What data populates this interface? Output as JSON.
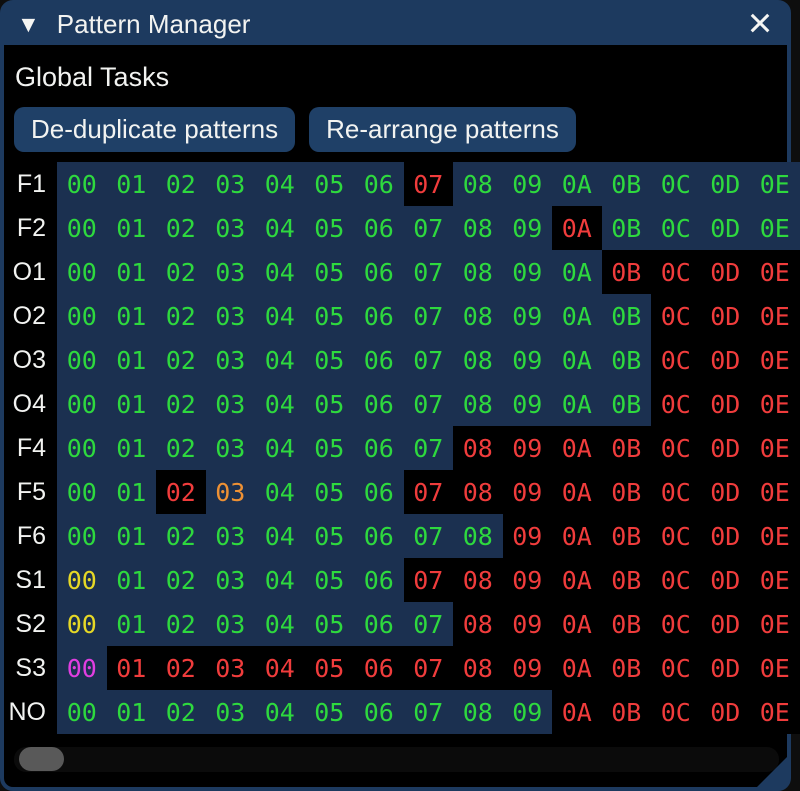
{
  "window": {
    "title": "Pattern Manager"
  },
  "icons": {
    "collapse_icon": "▼",
    "close_icon": "×"
  },
  "global_tasks": {
    "heading": "Global Tasks",
    "dedupe_button": "De-duplicate patterns",
    "rearrange_button": "Re-arrange patterns"
  },
  "colors": {
    "navy": "#1d3a5f",
    "button": "#1f4067",
    "cell_bg": "#1b3050",
    "green": "#2ed93e",
    "red": "#f03c3c",
    "orange": "#ee9134",
    "yellow": "#e6d826",
    "magenta": "#e03ee0",
    "thumb": "#595959"
  },
  "grid": {
    "rows": [
      {
        "label": "F1",
        "cells": [
          {
            "v": "00",
            "c": "g",
            "b": "u"
          },
          {
            "v": "01",
            "c": "g",
            "b": "u"
          },
          {
            "v": "02",
            "c": "g",
            "b": "u"
          },
          {
            "v": "03",
            "c": "g",
            "b": "u"
          },
          {
            "v": "04",
            "c": "g",
            "b": "u"
          },
          {
            "v": "05",
            "c": "g",
            "b": "u"
          },
          {
            "v": "06",
            "c": "g",
            "b": "u"
          },
          {
            "v": "07",
            "c": "r",
            "b": "k"
          },
          {
            "v": "08",
            "c": "g",
            "b": "u"
          },
          {
            "v": "09",
            "c": "g",
            "b": "u"
          },
          {
            "v": "0A",
            "c": "g",
            "b": "u"
          },
          {
            "v": "0B",
            "c": "g",
            "b": "u"
          },
          {
            "v": "0C",
            "c": "g",
            "b": "u"
          },
          {
            "v": "0D",
            "c": "g",
            "b": "u"
          },
          {
            "v": "0E",
            "c": "g",
            "b": "u"
          }
        ]
      },
      {
        "label": "F2",
        "cells": [
          {
            "v": "00",
            "c": "g",
            "b": "u"
          },
          {
            "v": "01",
            "c": "g",
            "b": "u"
          },
          {
            "v": "02",
            "c": "g",
            "b": "u"
          },
          {
            "v": "03",
            "c": "g",
            "b": "u"
          },
          {
            "v": "04",
            "c": "g",
            "b": "u"
          },
          {
            "v": "05",
            "c": "g",
            "b": "u"
          },
          {
            "v": "06",
            "c": "g",
            "b": "u"
          },
          {
            "v": "07",
            "c": "g",
            "b": "u"
          },
          {
            "v": "08",
            "c": "g",
            "b": "u"
          },
          {
            "v": "09",
            "c": "g",
            "b": "u"
          },
          {
            "v": "0A",
            "c": "r",
            "b": "k"
          },
          {
            "v": "0B",
            "c": "g",
            "b": "u"
          },
          {
            "v": "0C",
            "c": "g",
            "b": "u"
          },
          {
            "v": "0D",
            "c": "g",
            "b": "u"
          },
          {
            "v": "0E",
            "c": "g",
            "b": "u"
          }
        ]
      },
      {
        "label": "O1",
        "cells": [
          {
            "v": "00",
            "c": "g",
            "b": "u"
          },
          {
            "v": "01",
            "c": "g",
            "b": "u"
          },
          {
            "v": "02",
            "c": "g",
            "b": "u"
          },
          {
            "v": "03",
            "c": "g",
            "b": "u"
          },
          {
            "v": "04",
            "c": "g",
            "b": "u"
          },
          {
            "v": "05",
            "c": "g",
            "b": "u"
          },
          {
            "v": "06",
            "c": "g",
            "b": "u"
          },
          {
            "v": "07",
            "c": "g",
            "b": "u"
          },
          {
            "v": "08",
            "c": "g",
            "b": "u"
          },
          {
            "v": "09",
            "c": "g",
            "b": "u"
          },
          {
            "v": "0A",
            "c": "g",
            "b": "u"
          },
          {
            "v": "0B",
            "c": "r",
            "b": "k"
          },
          {
            "v": "0C",
            "c": "r",
            "b": "k"
          },
          {
            "v": "0D",
            "c": "r",
            "b": "k"
          },
          {
            "v": "0E",
            "c": "r",
            "b": "k"
          }
        ]
      },
      {
        "label": "O2",
        "cells": [
          {
            "v": "00",
            "c": "g",
            "b": "u"
          },
          {
            "v": "01",
            "c": "g",
            "b": "u"
          },
          {
            "v": "02",
            "c": "g",
            "b": "u"
          },
          {
            "v": "03",
            "c": "g",
            "b": "u"
          },
          {
            "v": "04",
            "c": "g",
            "b": "u"
          },
          {
            "v": "05",
            "c": "g",
            "b": "u"
          },
          {
            "v": "06",
            "c": "g",
            "b": "u"
          },
          {
            "v": "07",
            "c": "g",
            "b": "u"
          },
          {
            "v": "08",
            "c": "g",
            "b": "u"
          },
          {
            "v": "09",
            "c": "g",
            "b": "u"
          },
          {
            "v": "0A",
            "c": "g",
            "b": "u"
          },
          {
            "v": "0B",
            "c": "g",
            "b": "u"
          },
          {
            "v": "0C",
            "c": "r",
            "b": "k"
          },
          {
            "v": "0D",
            "c": "r",
            "b": "k"
          },
          {
            "v": "0E",
            "c": "r",
            "b": "k"
          }
        ]
      },
      {
        "label": "O3",
        "cells": [
          {
            "v": "00",
            "c": "g",
            "b": "u"
          },
          {
            "v": "01",
            "c": "g",
            "b": "u"
          },
          {
            "v": "02",
            "c": "g",
            "b": "u"
          },
          {
            "v": "03",
            "c": "g",
            "b": "u"
          },
          {
            "v": "04",
            "c": "g",
            "b": "u"
          },
          {
            "v": "05",
            "c": "g",
            "b": "u"
          },
          {
            "v": "06",
            "c": "g",
            "b": "u"
          },
          {
            "v": "07",
            "c": "g",
            "b": "u"
          },
          {
            "v": "08",
            "c": "g",
            "b": "u"
          },
          {
            "v": "09",
            "c": "g",
            "b": "u"
          },
          {
            "v": "0A",
            "c": "g",
            "b": "u"
          },
          {
            "v": "0B",
            "c": "g",
            "b": "u"
          },
          {
            "v": "0C",
            "c": "r",
            "b": "k"
          },
          {
            "v": "0D",
            "c": "r",
            "b": "k"
          },
          {
            "v": "0E",
            "c": "r",
            "b": "k"
          }
        ]
      },
      {
        "label": "O4",
        "cells": [
          {
            "v": "00",
            "c": "g",
            "b": "u"
          },
          {
            "v": "01",
            "c": "g",
            "b": "u"
          },
          {
            "v": "02",
            "c": "g",
            "b": "u"
          },
          {
            "v": "03",
            "c": "g",
            "b": "u"
          },
          {
            "v": "04",
            "c": "g",
            "b": "u"
          },
          {
            "v": "05",
            "c": "g",
            "b": "u"
          },
          {
            "v": "06",
            "c": "g",
            "b": "u"
          },
          {
            "v": "07",
            "c": "g",
            "b": "u"
          },
          {
            "v": "08",
            "c": "g",
            "b": "u"
          },
          {
            "v": "09",
            "c": "g",
            "b": "u"
          },
          {
            "v": "0A",
            "c": "g",
            "b": "u"
          },
          {
            "v": "0B",
            "c": "g",
            "b": "u"
          },
          {
            "v": "0C",
            "c": "r",
            "b": "k"
          },
          {
            "v": "0D",
            "c": "r",
            "b": "k"
          },
          {
            "v": "0E",
            "c": "r",
            "b": "k"
          }
        ]
      },
      {
        "label": "F4",
        "cells": [
          {
            "v": "00",
            "c": "g",
            "b": "u"
          },
          {
            "v": "01",
            "c": "g",
            "b": "u"
          },
          {
            "v": "02",
            "c": "g",
            "b": "u"
          },
          {
            "v": "03",
            "c": "g",
            "b": "u"
          },
          {
            "v": "04",
            "c": "g",
            "b": "u"
          },
          {
            "v": "05",
            "c": "g",
            "b": "u"
          },
          {
            "v": "06",
            "c": "g",
            "b": "u"
          },
          {
            "v": "07",
            "c": "g",
            "b": "u"
          },
          {
            "v": "08",
            "c": "r",
            "b": "k"
          },
          {
            "v": "09",
            "c": "r",
            "b": "k"
          },
          {
            "v": "0A",
            "c": "r",
            "b": "k"
          },
          {
            "v": "0B",
            "c": "r",
            "b": "k"
          },
          {
            "v": "0C",
            "c": "r",
            "b": "k"
          },
          {
            "v": "0D",
            "c": "r",
            "b": "k"
          },
          {
            "v": "0E",
            "c": "r",
            "b": "k"
          }
        ]
      },
      {
        "label": "F5",
        "cells": [
          {
            "v": "00",
            "c": "g",
            "b": "u"
          },
          {
            "v": "01",
            "c": "g",
            "b": "u"
          },
          {
            "v": "02",
            "c": "r",
            "b": "k"
          },
          {
            "v": "03",
            "c": "o",
            "b": "u"
          },
          {
            "v": "04",
            "c": "g",
            "b": "u"
          },
          {
            "v": "05",
            "c": "g",
            "b": "u"
          },
          {
            "v": "06",
            "c": "g",
            "b": "u"
          },
          {
            "v": "07",
            "c": "r",
            "b": "k"
          },
          {
            "v": "08",
            "c": "r",
            "b": "k"
          },
          {
            "v": "09",
            "c": "r",
            "b": "k"
          },
          {
            "v": "0A",
            "c": "r",
            "b": "k"
          },
          {
            "v": "0B",
            "c": "r",
            "b": "k"
          },
          {
            "v": "0C",
            "c": "r",
            "b": "k"
          },
          {
            "v": "0D",
            "c": "r",
            "b": "k"
          },
          {
            "v": "0E",
            "c": "r",
            "b": "k"
          }
        ]
      },
      {
        "label": "F6",
        "cells": [
          {
            "v": "00",
            "c": "g",
            "b": "u"
          },
          {
            "v": "01",
            "c": "g",
            "b": "u"
          },
          {
            "v": "02",
            "c": "g",
            "b": "u"
          },
          {
            "v": "03",
            "c": "g",
            "b": "u"
          },
          {
            "v": "04",
            "c": "g",
            "b": "u"
          },
          {
            "v": "05",
            "c": "g",
            "b": "u"
          },
          {
            "v": "06",
            "c": "g",
            "b": "u"
          },
          {
            "v": "07",
            "c": "g",
            "b": "u"
          },
          {
            "v": "08",
            "c": "g",
            "b": "u"
          },
          {
            "v": "09",
            "c": "r",
            "b": "k"
          },
          {
            "v": "0A",
            "c": "r",
            "b": "k"
          },
          {
            "v": "0B",
            "c": "r",
            "b": "k"
          },
          {
            "v": "0C",
            "c": "r",
            "b": "k"
          },
          {
            "v": "0D",
            "c": "r",
            "b": "k"
          },
          {
            "v": "0E",
            "c": "r",
            "b": "k"
          }
        ]
      },
      {
        "label": "S1",
        "cells": [
          {
            "v": "00",
            "c": "y",
            "b": "u"
          },
          {
            "v": "01",
            "c": "g",
            "b": "u"
          },
          {
            "v": "02",
            "c": "g",
            "b": "u"
          },
          {
            "v": "03",
            "c": "g",
            "b": "u"
          },
          {
            "v": "04",
            "c": "g",
            "b": "u"
          },
          {
            "v": "05",
            "c": "g",
            "b": "u"
          },
          {
            "v": "06",
            "c": "g",
            "b": "u"
          },
          {
            "v": "07",
            "c": "r",
            "b": "k"
          },
          {
            "v": "08",
            "c": "r",
            "b": "k"
          },
          {
            "v": "09",
            "c": "r",
            "b": "k"
          },
          {
            "v": "0A",
            "c": "r",
            "b": "k"
          },
          {
            "v": "0B",
            "c": "r",
            "b": "k"
          },
          {
            "v": "0C",
            "c": "r",
            "b": "k"
          },
          {
            "v": "0D",
            "c": "r",
            "b": "k"
          },
          {
            "v": "0E",
            "c": "r",
            "b": "k"
          }
        ]
      },
      {
        "label": "S2",
        "cells": [
          {
            "v": "00",
            "c": "y",
            "b": "u"
          },
          {
            "v": "01",
            "c": "g",
            "b": "u"
          },
          {
            "v": "02",
            "c": "g",
            "b": "u"
          },
          {
            "v": "03",
            "c": "g",
            "b": "u"
          },
          {
            "v": "04",
            "c": "g",
            "b": "u"
          },
          {
            "v": "05",
            "c": "g",
            "b": "u"
          },
          {
            "v": "06",
            "c": "g",
            "b": "u"
          },
          {
            "v": "07",
            "c": "g",
            "b": "u"
          },
          {
            "v": "08",
            "c": "r",
            "b": "k"
          },
          {
            "v": "09",
            "c": "r",
            "b": "k"
          },
          {
            "v": "0A",
            "c": "r",
            "b": "k"
          },
          {
            "v": "0B",
            "c": "r",
            "b": "k"
          },
          {
            "v": "0C",
            "c": "r",
            "b": "k"
          },
          {
            "v": "0D",
            "c": "r",
            "b": "k"
          },
          {
            "v": "0E",
            "c": "r",
            "b": "k"
          }
        ]
      },
      {
        "label": "S3",
        "cells": [
          {
            "v": "00",
            "c": "m",
            "b": "u"
          },
          {
            "v": "01",
            "c": "r",
            "b": "k"
          },
          {
            "v": "02",
            "c": "r",
            "b": "k"
          },
          {
            "v": "03",
            "c": "r",
            "b": "k"
          },
          {
            "v": "04",
            "c": "r",
            "b": "k"
          },
          {
            "v": "05",
            "c": "r",
            "b": "k"
          },
          {
            "v": "06",
            "c": "r",
            "b": "k"
          },
          {
            "v": "07",
            "c": "r",
            "b": "k"
          },
          {
            "v": "08",
            "c": "r",
            "b": "k"
          },
          {
            "v": "09",
            "c": "r",
            "b": "k"
          },
          {
            "v": "0A",
            "c": "r",
            "b": "k"
          },
          {
            "v": "0B",
            "c": "r",
            "b": "k"
          },
          {
            "v": "0C",
            "c": "r",
            "b": "k"
          },
          {
            "v": "0D",
            "c": "r",
            "b": "k"
          },
          {
            "v": "0E",
            "c": "r",
            "b": "k"
          }
        ]
      },
      {
        "label": "NO",
        "cells": [
          {
            "v": "00",
            "c": "g",
            "b": "u"
          },
          {
            "v": "01",
            "c": "g",
            "b": "u"
          },
          {
            "v": "02",
            "c": "g",
            "b": "u"
          },
          {
            "v": "03",
            "c": "g",
            "b": "u"
          },
          {
            "v": "04",
            "c": "g",
            "b": "u"
          },
          {
            "v": "05",
            "c": "g",
            "b": "u"
          },
          {
            "v": "06",
            "c": "g",
            "b": "u"
          },
          {
            "v": "07",
            "c": "g",
            "b": "u"
          },
          {
            "v": "08",
            "c": "g",
            "b": "u"
          },
          {
            "v": "09",
            "c": "g",
            "b": "u"
          },
          {
            "v": "0A",
            "c": "r",
            "b": "k"
          },
          {
            "v": "0B",
            "c": "r",
            "b": "k"
          },
          {
            "v": "0C",
            "c": "r",
            "b": "k"
          },
          {
            "v": "0D",
            "c": "r",
            "b": "k"
          },
          {
            "v": "0E",
            "c": "r",
            "b": "k"
          }
        ]
      }
    ]
  }
}
